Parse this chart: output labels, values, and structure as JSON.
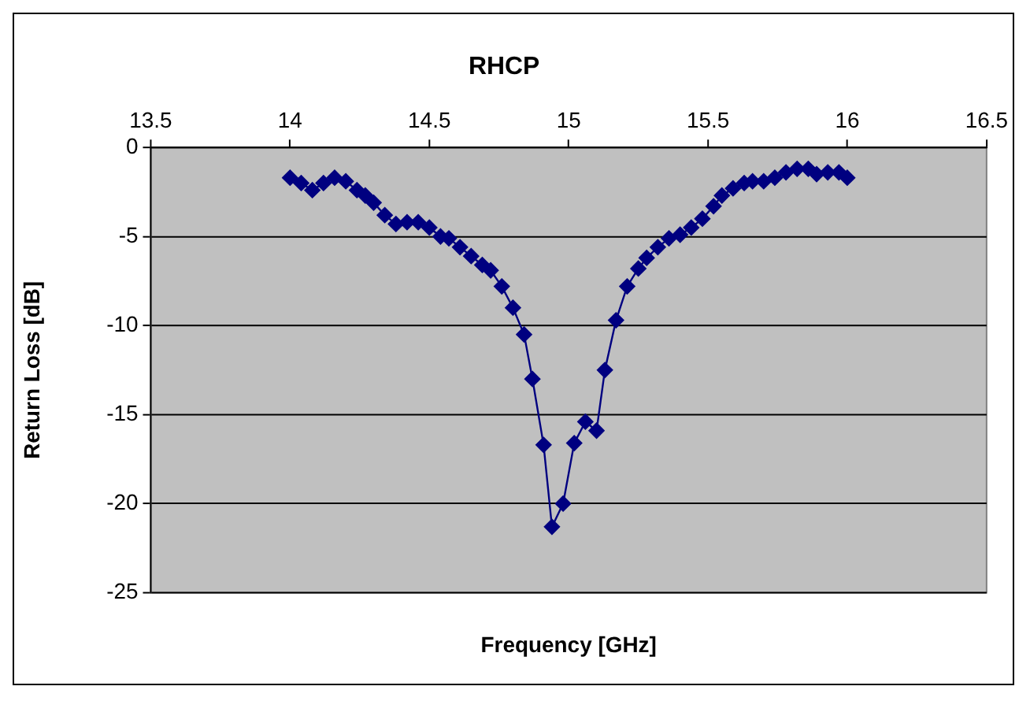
{
  "chart_data": {
    "type": "line",
    "title": "RHCP",
    "xlabel": "Frequency [GHz]",
    "ylabel": "Return Loss [dB]",
    "x": [
      14.0,
      14.04,
      14.08,
      14.12,
      14.16,
      14.2,
      14.24,
      14.27,
      14.3,
      14.34,
      14.38,
      14.42,
      14.46,
      14.5,
      14.54,
      14.57,
      14.61,
      14.65,
      14.69,
      14.72,
      14.76,
      14.8,
      14.84,
      14.87,
      14.91,
      14.94,
      14.98,
      15.02,
      15.06,
      15.1,
      15.13,
      15.17,
      15.21,
      15.25,
      15.28,
      15.32,
      15.36,
      15.4,
      15.44,
      15.48,
      15.52,
      15.55,
      15.59,
      15.63,
      15.66,
      15.7,
      15.74,
      15.78,
      15.82,
      15.86,
      15.89,
      15.93,
      15.97,
      16.0
    ],
    "series": [
      {
        "color": "#000080",
        "values": [
          -1.7,
          -2.0,
          -2.4,
          -2.0,
          -1.7,
          -1.9,
          -2.4,
          -2.7,
          -3.1,
          -3.8,
          -4.3,
          -4.2,
          -4.2,
          -4.5,
          -5.0,
          -5.1,
          -5.6,
          -6.1,
          -6.6,
          -6.9,
          -7.8,
          -9.0,
          -10.5,
          -13.0,
          -16.7,
          -21.3,
          -20.0,
          -16.6,
          -15.4,
          -15.9,
          -12.5,
          -9.7,
          -7.8,
          -6.8,
          -6.2,
          -5.6,
          -5.1,
          -4.9,
          -4.5,
          -4.0,
          -3.3,
          -2.7,
          -2.3,
          -2.0,
          -1.9,
          -1.9,
          -1.7,
          -1.4,
          -1.2,
          -1.2,
          -1.5,
          -1.4,
          -1.4,
          -1.7
        ]
      }
    ],
    "xlim": [
      13.5,
      16.5
    ],
    "xticks": [
      13.5,
      14,
      14.5,
      15,
      15.5,
      16,
      16.5
    ],
    "ylim": [
      -25,
      0
    ],
    "yticks": [
      -25,
      -20,
      -15,
      -10,
      -5,
      0
    ],
    "grid": "y",
    "legend": false,
    "marker": "diamond",
    "line_style": "solid"
  }
}
